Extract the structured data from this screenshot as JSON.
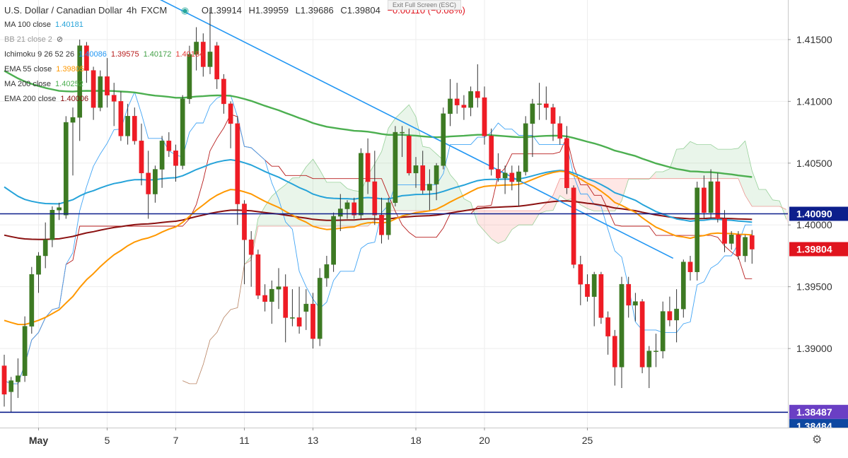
{
  "chart_data": {
    "type": "candlestick",
    "title": "U.S. Dollar / Canadian Dollar",
    "interval": "4h",
    "source": "FXCM",
    "ohlc_readout": {
      "open": "O1.39914",
      "high": "H1.39959",
      "low": "L1.39686",
      "close": "C1.39804",
      "change": "−0.00110 (−0.08%)"
    },
    "indicators": [
      {
        "label": "MA 100 close",
        "value": "1.40181",
        "color": "#26a3d9"
      },
      {
        "label": "BB 21 close 2",
        "value": "",
        "color": "#999999"
      },
      {
        "label": "Ichimoku 9 26 52 26",
        "values": [
          "1.40086",
          "1.39575",
          "1.40172",
          "1.40184"
        ],
        "colors": [
          "#2196f3",
          "#b71c1c",
          "#43a047",
          "#e53935"
        ]
      },
      {
        "label": "EMA 55 close",
        "value": "1.39805",
        "color": "#ff9800"
      },
      {
        "label": "MA 200 close",
        "value": "1.40252",
        "color": "#4caf50"
      },
      {
        "label": "EMA 200 close",
        "value": "1.40006",
        "color": "#880e0e"
      }
    ],
    "y_axis": {
      "range": [
        1.3836,
        1.4182
      ],
      "ticks": [
        "1.41500",
        "1.41000",
        "1.40500",
        "1.40000",
        "1.39500",
        "1.39000"
      ],
      "tick_values": [
        1.415,
        1.41,
        1.405,
        1.4,
        1.395,
        1.39
      ]
    },
    "x_axis": {
      "ticks": [
        {
          "label": "May",
          "bar": 5
        },
        {
          "label": "5",
          "bar": 15
        },
        {
          "label": "7",
          "bar": 25
        },
        {
          "label": "11",
          "bar": 35
        },
        {
          "label": "13",
          "bar": 45
        },
        {
          "label": "18",
          "bar": 60
        },
        {
          "label": "20",
          "bar": 70
        },
        {
          "label": "25",
          "bar": 85
        }
      ]
    },
    "price_labels": [
      {
        "text": "1.40090",
        "value": 1.4009,
        "color": "#0d1f8c"
      },
      {
        "text": "1.39804",
        "value": 1.39804,
        "color": "#e0141e"
      },
      {
        "text": "1.38487",
        "value": 1.38487,
        "color": "#6a3fc4"
      },
      {
        "text": "1.38484",
        "value": 1.38484,
        "color": "#0d47a1"
      }
    ],
    "horizontal_lines": [
      {
        "value": 1.4009,
        "color": "#0d1f8c"
      },
      {
        "value": 1.38484,
        "color": "#0d1f8c"
      }
    ],
    "trendline": {
      "from": {
        "bar": 20,
        "value": 1.419
      },
      "to": {
        "bar": 97.5,
        "value": 1.3973
      },
      "color": "#2196f3"
    },
    "candles": [
      {
        "o": 1.3886,
        "h": 1.3895,
        "l": 1.3853,
        "c": 1.3863
      },
      {
        "o": 1.3865,
        "h": 1.3877,
        "l": 1.3848,
        "c": 1.3874
      },
      {
        "o": 1.3873,
        "h": 1.3892,
        "l": 1.386,
        "c": 1.3878
      },
      {
        "o": 1.3878,
        "h": 1.3926,
        "l": 1.3873,
        "c": 1.3918
      },
      {
        "o": 1.3918,
        "h": 1.3966,
        "l": 1.3912,
        "c": 1.396
      },
      {
        "o": 1.396,
        "h": 1.3978,
        "l": 1.3945,
        "c": 1.3975
      },
      {
        "o": 1.3975,
        "h": 1.4002,
        "l": 1.3965,
        "c": 1.3988
      },
      {
        "o": 1.3988,
        "h": 1.4015,
        "l": 1.3982,
        "c": 1.4012
      },
      {
        "o": 1.4012,
        "h": 1.4018,
        "l": 1.4004,
        "c": 1.4014
      },
      {
        "o": 1.4008,
        "h": 1.4088,
        "l": 1.4005,
        "c": 1.4083
      },
      {
        "o": 1.4083,
        "h": 1.4095,
        "l": 1.404,
        "c": 1.4087
      },
      {
        "o": 1.4087,
        "h": 1.415,
        "l": 1.4068,
        "c": 1.4145
      },
      {
        "o": 1.4145,
        "h": 1.4148,
        "l": 1.4115,
        "c": 1.4125
      },
      {
        "o": 1.4125,
        "h": 1.4128,
        "l": 1.4085,
        "c": 1.4095
      },
      {
        "o": 1.4095,
        "h": 1.4125,
        "l": 1.4092,
        "c": 1.412
      },
      {
        "o": 1.412,
        "h": 1.4135,
        "l": 1.4095,
        "c": 1.4105
      },
      {
        "o": 1.4105,
        "h": 1.4115,
        "l": 1.408,
        "c": 1.41
      },
      {
        "o": 1.41,
        "h": 1.4108,
        "l": 1.4068,
        "c": 1.4072
      },
      {
        "o": 1.4072,
        "h": 1.4098,
        "l": 1.4065,
        "c": 1.4088
      },
      {
        "o": 1.4088,
        "h": 1.4095,
        "l": 1.4065,
        "c": 1.4068
      },
      {
        "o": 1.4068,
        "h": 1.4082,
        "l": 1.4032,
        "c": 1.4042
      },
      {
        "o": 1.4042,
        "h": 1.406,
        "l": 1.4005,
        "c": 1.4025
      },
      {
        "o": 1.4025,
        "h": 1.4048,
        "l": 1.4018,
        "c": 1.4045
      },
      {
        "o": 1.4045,
        "h": 1.4072,
        "l": 1.403,
        "c": 1.4068
      },
      {
        "o": 1.4068,
        "h": 1.4075,
        "l": 1.4055,
        "c": 1.406
      },
      {
        "o": 1.406,
        "h": 1.4065,
        "l": 1.4035,
        "c": 1.4048
      },
      {
        "o": 1.4048,
        "h": 1.4105,
        "l": 1.4045,
        "c": 1.4102
      },
      {
        "o": 1.4102,
        "h": 1.4145,
        "l": 1.4098,
        "c": 1.4138
      },
      {
        "o": 1.4138,
        "h": 1.416,
        "l": 1.4125,
        "c": 1.4148
      },
      {
        "o": 1.4148,
        "h": 1.4155,
        "l": 1.412,
        "c": 1.4128
      },
      {
        "o": 1.4128,
        "h": 1.4175,
        "l": 1.4122,
        "c": 1.414
      },
      {
        "o": 1.4145,
        "h": 1.4148,
        "l": 1.411,
        "c": 1.4118
      },
      {
        "o": 1.4118,
        "h": 1.4122,
        "l": 1.409,
        "c": 1.4098
      },
      {
        "o": 1.4098,
        "h": 1.41,
        "l": 1.4062,
        "c": 1.4082
      },
      {
        "o": 1.4082,
        "h": 1.4088,
        "l": 1.4,
        "c": 1.4017
      },
      {
        "o": 1.4017,
        "h": 1.402,
        "l": 1.3952,
        "c": 1.3988
      },
      {
        "o": 1.3988,
        "h": 1.3995,
        "l": 1.395,
        "c": 1.3976
      },
      {
        "o": 1.3976,
        "h": 1.398,
        "l": 1.394,
        "c": 1.3943
      },
      {
        "o": 1.3943,
        "h": 1.3952,
        "l": 1.393,
        "c": 1.3938
      },
      {
        "o": 1.3938,
        "h": 1.3955,
        "l": 1.392,
        "c": 1.3948
      },
      {
        "o": 1.3948,
        "h": 1.3965,
        "l": 1.3932,
        "c": 1.395
      },
      {
        "o": 1.395,
        "h": 1.396,
        "l": 1.3905,
        "c": 1.3925
      },
      {
        "o": 1.3925,
        "h": 1.3948,
        "l": 1.3918,
        "c": 1.3925
      },
      {
        "o": 1.3925,
        "h": 1.395,
        "l": 1.3912,
        "c": 1.3918
      },
      {
        "o": 1.393,
        "h": 1.3948,
        "l": 1.3915,
        "c": 1.3936
      },
      {
        "o": 1.3936,
        "h": 1.3945,
        "l": 1.39,
        "c": 1.3908
      },
      {
        "o": 1.3908,
        "h": 1.3965,
        "l": 1.3902,
        "c": 1.3957
      },
      {
        "o": 1.3957,
        "h": 1.3975,
        "l": 1.395,
        "c": 1.3968
      },
      {
        "o": 1.3968,
        "h": 1.401,
        "l": 1.3962,
        "c": 1.4007
      },
      {
        "o": 1.4007,
        "h": 1.4025,
        "l": 1.3995,
        "c": 1.4013
      },
      {
        "o": 1.4013,
        "h": 1.402,
        "l": 1.4005,
        "c": 1.4018
      },
      {
        "o": 1.4018,
        "h": 1.4022,
        "l": 1.4005,
        "c": 1.4008
      },
      {
        "o": 1.4008,
        "h": 1.4062,
        "l": 1.4005,
        "c": 1.4058
      },
      {
        "o": 1.4058,
        "h": 1.407,
        "l": 1.4025,
        "c": 1.4035
      },
      {
        "o": 1.4035,
        "h": 1.406,
        "l": 1.4,
        "c": 1.4008
      },
      {
        "o": 1.4008,
        "h": 1.4022,
        "l": 1.3985,
        "c": 1.3992
      },
      {
        "o": 1.3992,
        "h": 1.4022,
        "l": 1.3988,
        "c": 1.4018
      },
      {
        "o": 1.4018,
        "h": 1.408,
        "l": 1.4015,
        "c": 1.4075
      },
      {
        "o": 1.4075,
        "h": 1.408,
        "l": 1.4055,
        "c": 1.4075
      },
      {
        "o": 1.4072,
        "h": 1.4078,
        "l": 1.404,
        "c": 1.4042
      },
      {
        "o": 1.4042,
        "h": 1.4055,
        "l": 1.403,
        "c": 1.4048
      },
      {
        "o": 1.4048,
        "h": 1.406,
        "l": 1.4025,
        "c": 1.4028
      },
      {
        "o": 1.4028,
        "h": 1.4045,
        "l": 1.4012,
        "c": 1.4033
      },
      {
        "o": 1.4033,
        "h": 1.405,
        "l": 1.402,
        "c": 1.4048
      },
      {
        "o": 1.4048,
        "h": 1.4095,
        "l": 1.4045,
        "c": 1.409
      },
      {
        "o": 1.409,
        "h": 1.4118,
        "l": 1.408,
        "c": 1.4102
      },
      {
        "o": 1.4102,
        "h": 1.4115,
        "l": 1.409,
        "c": 1.4097
      },
      {
        "o": 1.4097,
        "h": 1.4105,
        "l": 1.4085,
        "c": 1.4095
      },
      {
        "o": 1.4095,
        "h": 1.4112,
        "l": 1.4088,
        "c": 1.4108
      },
      {
        "o": 1.4108,
        "h": 1.413,
        "l": 1.4095,
        "c": 1.4103
      },
      {
        "o": 1.4103,
        "h": 1.4112,
        "l": 1.4065,
        "c": 1.4072
      },
      {
        "o": 1.4072,
        "h": 1.4078,
        "l": 1.404,
        "c": 1.4045
      },
      {
        "o": 1.4045,
        "h": 1.4058,
        "l": 1.4035,
        "c": 1.4038
      },
      {
        "o": 1.4038,
        "h": 1.4048,
        "l": 1.4025,
        "c": 1.4042
      },
      {
        "o": 1.4042,
        "h": 1.4048,
        "l": 1.4028,
        "c": 1.4035
      },
      {
        "o": 1.4035,
        "h": 1.4048,
        "l": 1.4015,
        "c": 1.4043
      },
      {
        "o": 1.4043,
        "h": 1.4088,
        "l": 1.404,
        "c": 1.4082
      },
      {
        "o": 1.4082,
        "h": 1.4102,
        "l": 1.4055,
        "c": 1.4098
      },
      {
        "o": 1.4098,
        "h": 1.4115,
        "l": 1.4085,
        "c": 1.4098
      },
      {
        "o": 1.4098,
        "h": 1.4112,
        "l": 1.4085,
        "c": 1.4095
      },
      {
        "o": 1.4095,
        "h": 1.4098,
        "l": 1.4068,
        "c": 1.4082
      },
      {
        "o": 1.4082,
        "h": 1.4088,
        "l": 1.4065,
        "c": 1.407
      },
      {
        "o": 1.407,
        "h": 1.408,
        "l": 1.4025,
        "c": 1.403
      },
      {
        "o": 1.403,
        "h": 1.4032,
        "l": 1.3965,
        "c": 1.3968
      },
      {
        "o": 1.3968,
        "h": 1.3975,
        "l": 1.3935,
        "c": 1.3952
      },
      {
        "o": 1.3952,
        "h": 1.396,
        "l": 1.3938,
        "c": 1.3942
      },
      {
        "o": 1.3942,
        "h": 1.3962,
        "l": 1.3918,
        "c": 1.396
      },
      {
        "o": 1.396,
        "h": 1.3962,
        "l": 1.392,
        "c": 1.3925
      },
      {
        "o": 1.3925,
        "h": 1.393,
        "l": 1.3895,
        "c": 1.391
      },
      {
        "o": 1.391,
        "h": 1.3915,
        "l": 1.387,
        "c": 1.3885
      },
      {
        "o": 1.3885,
        "h": 1.3958,
        "l": 1.3868,
        "c": 1.3952
      },
      {
        "o": 1.3952,
        "h": 1.3958,
        "l": 1.3925,
        "c": 1.3935
      },
      {
        "o": 1.3935,
        "h": 1.3945,
        "l": 1.3922,
        "c": 1.3938
      },
      {
        "o": 1.3938,
        "h": 1.394,
        "l": 1.388,
        "c": 1.3885
      },
      {
        "o": 1.3885,
        "h": 1.3902,
        "l": 1.3868,
        "c": 1.3898
      },
      {
        "o": 1.3898,
        "h": 1.3912,
        "l": 1.3885,
        "c": 1.3898
      },
      {
        "o": 1.3898,
        "h": 1.3938,
        "l": 1.3892,
        "c": 1.393
      },
      {
        "o": 1.393,
        "h": 1.3942,
        "l": 1.3918,
        "c": 1.3923
      },
      {
        "o": 1.3923,
        "h": 1.3948,
        "l": 1.3905,
        "c": 1.3932
      },
      {
        "o": 1.3932,
        "h": 1.3972,
        "l": 1.3925,
        "c": 1.397
      },
      {
        "o": 1.397,
        "h": 1.3975,
        "l": 1.3955,
        "c": 1.3962
      },
      {
        "o": 1.3962,
        "h": 1.4035,
        "l": 1.3955,
        "c": 1.403
      },
      {
        "o": 1.403,
        "h": 1.404,
        "l": 1.4005,
        "c": 1.401
      },
      {
        "o": 1.401,
        "h": 1.4045,
        "l": 1.4005,
        "c": 1.4035
      },
      {
        "o": 1.4035,
        "h": 1.4042,
        "l": 1.4002,
        "c": 1.4005
      },
      {
        "o": 1.4005,
        "h": 1.4012,
        "l": 1.3978,
        "c": 1.3985
      },
      {
        "o": 1.3985,
        "h": 1.3995,
        "l": 1.398,
        "c": 1.3992
      },
      {
        "o": 1.3992,
        "h": 1.3995,
        "l": 1.3972,
        "c": 1.3975
      },
      {
        "o": 1.3975,
        "h": 1.3992,
        "l": 1.397,
        "c": 1.399
      },
      {
        "o": 1.39914,
        "h": 1.39959,
        "l": 1.39686,
        "c": 1.39804
      }
    ]
  },
  "ui": {
    "exit_fullscreen": "Exit Full Screen (ESC)",
    "settings_icon": "gear-icon"
  }
}
